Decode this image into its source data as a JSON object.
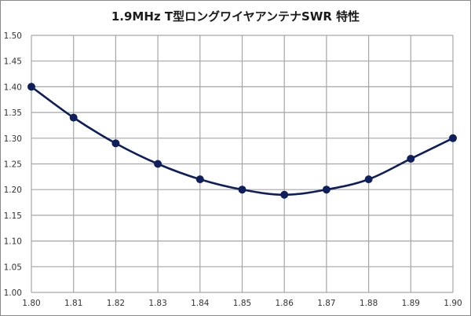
{
  "chart_data": {
    "type": "line",
    "title": "1.9MHz T型ロングワイヤアンテナSWR 特性",
    "xlabel": "",
    "ylabel": "",
    "x": [
      1.8,
      1.81,
      1.82,
      1.83,
      1.84,
      1.85,
      1.86,
      1.87,
      1.88,
      1.89,
      1.9
    ],
    "series": [
      {
        "name": "SWR",
        "values": [
          1.4,
          1.34,
          1.29,
          1.25,
          1.22,
          1.2,
          1.19,
          1.2,
          1.22,
          1.26,
          1.3
        ],
        "color": "#0f1f5c",
        "marker": "circle",
        "smooth": true
      }
    ],
    "xlim": [
      1.8,
      1.9
    ],
    "ylim": [
      1.0,
      1.5
    ],
    "x_ticks": [
      "1.80",
      "1.81",
      "1.82",
      "1.83",
      "1.84",
      "1.85",
      "1.86",
      "1.87",
      "1.88",
      "1.89",
      "1.90"
    ],
    "y_ticks": [
      "1.00",
      "1.05",
      "1.10",
      "1.15",
      "1.20",
      "1.25",
      "1.30",
      "1.35",
      "1.40",
      "1.45",
      "1.50"
    ],
    "grid": true,
    "legend": "none"
  }
}
